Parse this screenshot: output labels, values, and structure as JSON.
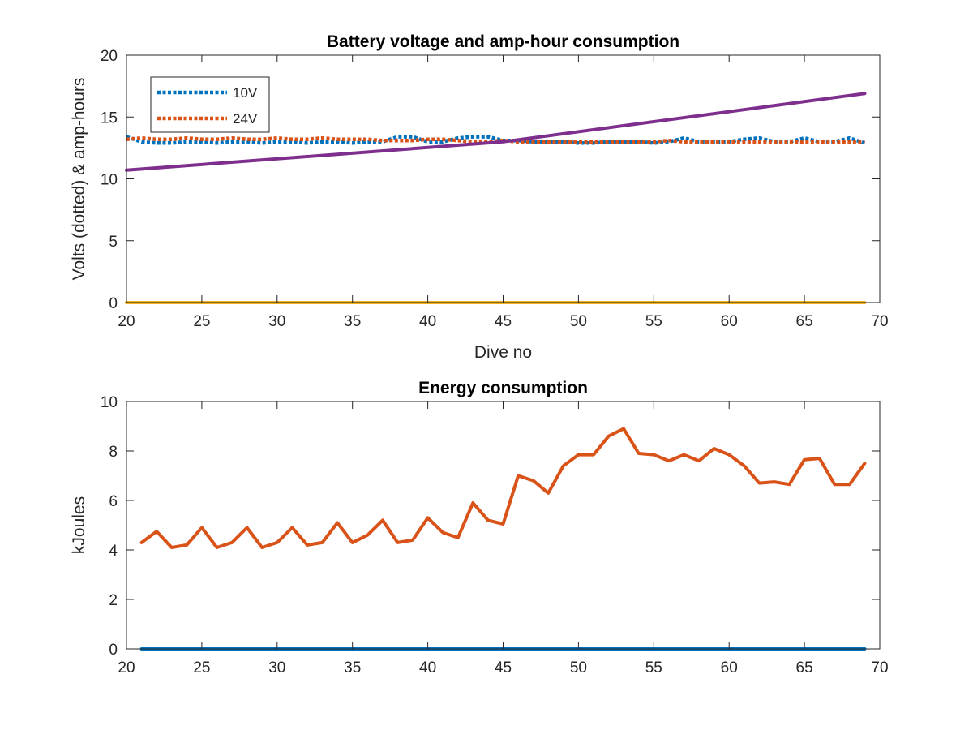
{
  "colors": {
    "blue": "#0072BD",
    "orange": "#D95319",
    "yellow": "#EDB120",
    "purple": "#7E2F8E",
    "axis": "#262626"
  },
  "chart_data": [
    {
      "type": "line",
      "title": "Battery voltage and amp-hour consumption",
      "xlabel": "Dive no",
      "ylabel": "Volts (dotted) & amp-hours",
      "xlim": [
        20,
        70
      ],
      "ylim": [
        0,
        20
      ],
      "xticks": [
        "20",
        "25",
        "30",
        "35",
        "40",
        "45",
        "50",
        "55",
        "60",
        "65",
        "70"
      ],
      "yticks": [
        "0",
        "5",
        "10",
        "15",
        "20"
      ],
      "grid": false,
      "legend_position": "top-left",
      "series": [
        {
          "name": "10V",
          "style": "dotted",
          "color": "#0072BD",
          "x": [
            20,
            21,
            22,
            23,
            24,
            25,
            26,
            27,
            28,
            29,
            30,
            31,
            32,
            33,
            34,
            35,
            36,
            37,
            38,
            39,
            40,
            41,
            42,
            43,
            44,
            45,
            46,
            47,
            48,
            49,
            50,
            51,
            52,
            53,
            54,
            55,
            56,
            57,
            58,
            59,
            60,
            61,
            62,
            63,
            64,
            65,
            66,
            67,
            68,
            69
          ],
          "y": [
            13.4,
            13.0,
            12.9,
            12.9,
            13.0,
            13.0,
            12.9,
            13.0,
            13.0,
            12.9,
            13.0,
            13.0,
            12.9,
            13.0,
            13.0,
            12.9,
            13.0,
            13.0,
            13.4,
            13.4,
            13.0,
            13.0,
            13.3,
            13.4,
            13.4,
            13.1,
            13.1,
            13.0,
            13.0,
            13.0,
            12.9,
            12.9,
            13.0,
            13.0,
            13.0,
            12.9,
            13.0,
            13.3,
            13.0,
            13.0,
            13.0,
            13.2,
            13.3,
            13.0,
            13.0,
            13.3,
            13.0,
            13.0,
            13.3,
            12.9
          ]
        },
        {
          "name": "24V",
          "style": "dotted",
          "color": "#D95319",
          "x": [
            20,
            21,
            22,
            23,
            24,
            25,
            26,
            27,
            28,
            29,
            30,
            31,
            32,
            33,
            34,
            35,
            36,
            37,
            38,
            39,
            40,
            41,
            42,
            43,
            44,
            45,
            46,
            47,
            48,
            49,
            50,
            51,
            52,
            53,
            54,
            55,
            56,
            57,
            58,
            59,
            60,
            61,
            62,
            63,
            64,
            65,
            66,
            67,
            68,
            69
          ],
          "y": [
            13.2,
            13.3,
            13.2,
            13.2,
            13.3,
            13.2,
            13.2,
            13.3,
            13.2,
            13.2,
            13.3,
            13.2,
            13.2,
            13.3,
            13.2,
            13.2,
            13.2,
            13.1,
            13.1,
            13.1,
            13.2,
            13.2,
            13.1,
            13.0,
            13.0,
            13.1,
            13.0,
            13.0,
            13.0,
            13.0,
            13.0,
            13.0,
            13.0,
            13.0,
            13.0,
            13.0,
            13.1,
            13.0,
            13.0,
            13.0,
            13.0,
            13.0,
            13.0,
            13.0,
            13.0,
            13.0,
            13.0,
            13.0,
            13.0,
            13.0
          ]
        },
        {
          "style": "solid",
          "color": "#EDB120",
          "x": [
            20,
            69
          ],
          "y": [
            0,
            0
          ]
        },
        {
          "style": "solid",
          "color": "#7E2F8E",
          "x": [
            20,
            45,
            69
          ],
          "y": [
            10.7,
            13.0,
            16.9
          ]
        }
      ]
    },
    {
      "type": "line",
      "title": "Energy consumption",
      "xlabel": "",
      "ylabel": "kJoules",
      "xlim": [
        20,
        70
      ],
      "ylim": [
        0,
        10
      ],
      "xticks": [
        "20",
        "25",
        "30",
        "35",
        "40",
        "45",
        "50",
        "55",
        "60",
        "65",
        "70"
      ],
      "yticks": [
        "0",
        "2",
        "4",
        "6",
        "8",
        "10"
      ],
      "grid": false,
      "series": [
        {
          "style": "solid",
          "color": "#D95319",
          "x": [
            21,
            22,
            23,
            24,
            25,
            26,
            27,
            28,
            29,
            30,
            31,
            32,
            33,
            34,
            35,
            36,
            37,
            38,
            39,
            40,
            41,
            42,
            43,
            44,
            45,
            46,
            47,
            48,
            49,
            50,
            51,
            52,
            53,
            54,
            55,
            56,
            57,
            58,
            59,
            60,
            61,
            62,
            63,
            64,
            65,
            66,
            67,
            68,
            69
          ],
          "y": [
            4.3,
            4.75,
            4.1,
            4.2,
            4.9,
            4.1,
            4.3,
            4.9,
            4.1,
            4.3,
            4.9,
            4.2,
            4.3,
            5.1,
            4.3,
            4.6,
            5.2,
            4.3,
            4.4,
            5.3,
            4.7,
            4.5,
            5.9,
            5.2,
            5.05,
            7.0,
            6.8,
            6.3,
            7.4,
            7.85,
            7.85,
            8.6,
            8.9,
            7.9,
            7.85,
            7.6,
            7.85,
            7.6,
            8.1,
            7.85,
            7.4,
            6.7,
            6.75,
            6.65,
            7.65,
            7.7,
            6.65,
            6.65,
            7.5
          ]
        },
        {
          "style": "solid",
          "color": "#0072BD",
          "x": [
            21,
            69
          ],
          "y": [
            0,
            0
          ]
        }
      ]
    }
  ]
}
